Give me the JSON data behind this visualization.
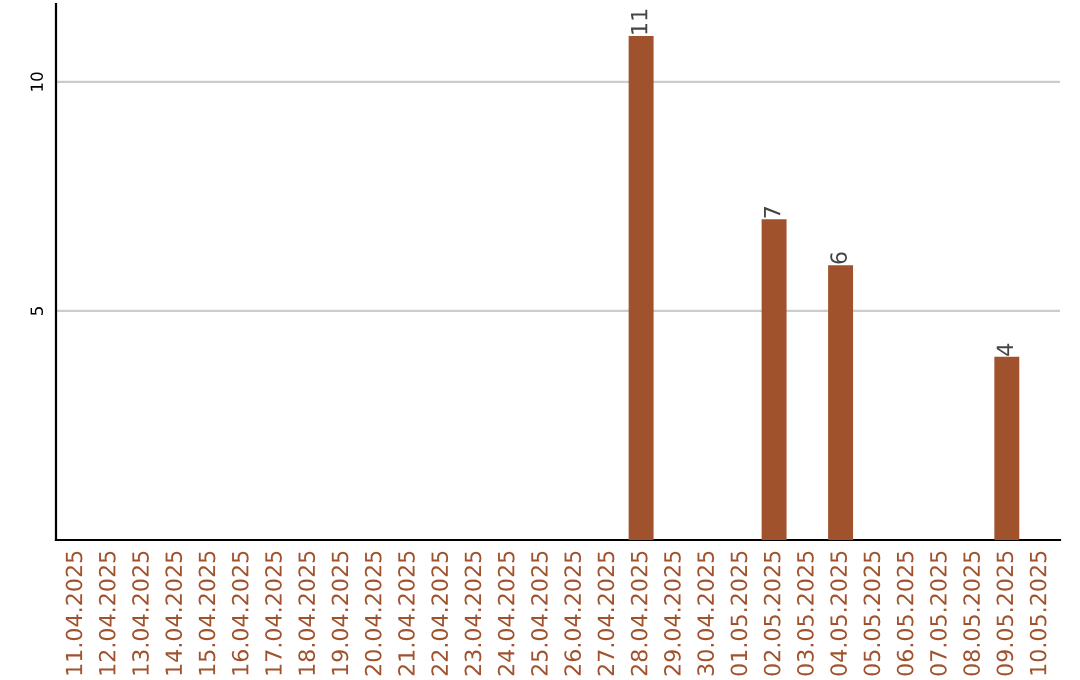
{
  "chart_data": {
    "type": "bar",
    "categories": [
      "11.04.2025",
      "12.04.2025",
      "13.04.2025",
      "14.04.2025",
      "15.04.2025",
      "16.04.2025",
      "17.04.2025",
      "18.04.2025",
      "19.04.2025",
      "20.04.2025",
      "21.04.2025",
      "22.04.2025",
      "23.04.2025",
      "24.04.2025",
      "25.04.2025",
      "26.04.2025",
      "27.04.2025",
      "28.04.2025",
      "29.04.2025",
      "30.04.2025",
      "01.05.2025",
      "02.05.2025",
      "03.05.2025",
      "04.05.2025",
      "05.05.2025",
      "06.05.2025",
      "07.05.2025",
      "08.05.2025",
      "09.05.2025",
      "10.05.2025"
    ],
    "values": [
      0,
      0,
      0,
      0,
      0,
      0,
      0,
      0,
      0,
      0,
      0,
      0,
      0,
      0,
      0,
      0,
      0,
      11,
      0,
      0,
      0,
      7,
      0,
      6,
      0,
      0,
      0,
      0,
      4,
      0
    ],
    "value_labels": [
      null,
      null,
      null,
      null,
      null,
      null,
      null,
      null,
      null,
      null,
      null,
      null,
      null,
      null,
      null,
      null,
      null,
      "11",
      null,
      null,
      null,
      "7",
      null,
      "6",
      null,
      null,
      null,
      null,
      "4",
      null
    ],
    "color": "#a0522d",
    "ylim": [
      0,
      11.7
    ],
    "yticks": [
      5,
      10
    ],
    "grid": "y"
  }
}
